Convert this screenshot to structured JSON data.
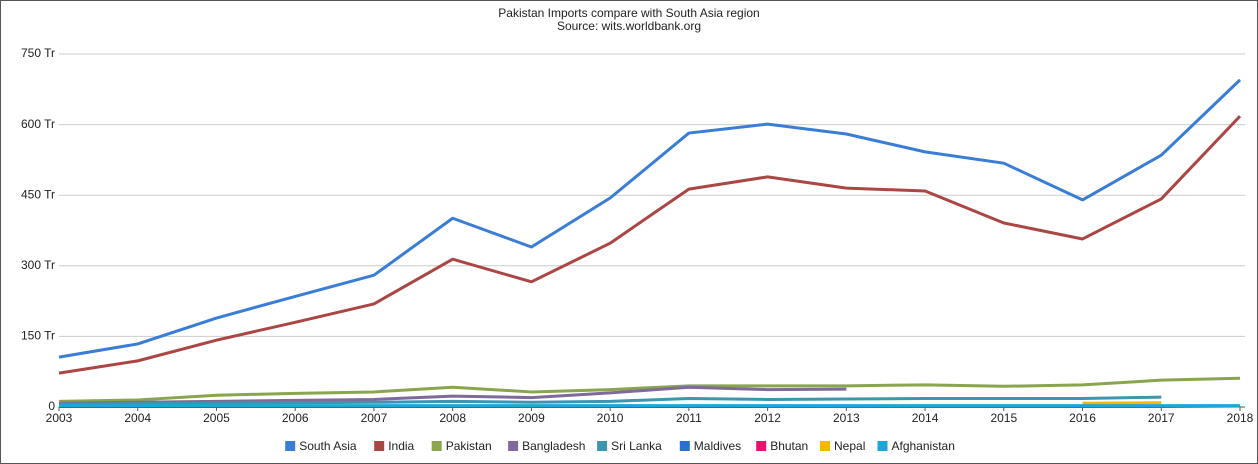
{
  "chart_data": {
    "type": "line",
    "title": "Pakistan Imports compare with South Asia region",
    "subtitle": "Source: wits.worldbank.org",
    "x": [
      2003,
      2004,
      2005,
      2006,
      2007,
      2008,
      2009,
      2010,
      2011,
      2012,
      2013,
      2014,
      2015,
      2016,
      2017,
      2018
    ],
    "xlim": [
      2003,
      2018
    ],
    "xticks": [
      2003,
      2004,
      2005,
      2006,
      2007,
      2008,
      2009,
      2010,
      2011,
      2012,
      2013,
      2014,
      2015,
      2016,
      2017,
      2018
    ],
    "ylim": [
      0,
      750
    ],
    "yticks": [
      0,
      {
        "value": 150,
        "label": "150 Tr"
      },
      {
        "value": 300,
        "label": "300 Tr"
      },
      {
        "value": 450,
        "label": "450 Tr"
      },
      {
        "value": 600,
        "label": "600 Tr"
      },
      {
        "value": 750,
        "label": "750 Tr"
      }
    ],
    "grid": true,
    "legend": "bottom",
    "series": [
      {
        "name": "South Asia",
        "color": "#3a7dd6",
        "values": [
          106,
          134,
          189,
          235,
          280,
          401,
          340,
          444,
          582,
          601,
          580,
          542,
          518,
          440,
          535,
          695
        ]
      },
      {
        "name": "India",
        "color": "#aa4643",
        "values": [
          72,
          98,
          142,
          180,
          219,
          314,
          266,
          348,
          463,
          489,
          465,
          459,
          391,
          357,
          442,
          618
        ]
      },
      {
        "name": "Pakistan",
        "color": "#89a54e",
        "values": [
          12,
          15,
          25,
          29,
          32,
          42,
          32,
          37,
          45,
          45,
          45,
          47,
          44,
          47,
          57,
          61
        ]
      },
      {
        "name": "Bangladesh",
        "color": "#80699b",
        "values": [
          8,
          10,
          12,
          14,
          16,
          23,
          20,
          30,
          42,
          37,
          38,
          null,
          null,
          null,
          null,
          null
        ]
      },
      {
        "name": "Sri Lanka",
        "color": "#3d96ae",
        "values": [
          6,
          7,
          8,
          9,
          10,
          12,
          10,
          12,
          18,
          16,
          17,
          18,
          18,
          18,
          21,
          null
        ]
      },
      {
        "name": "Maldives",
        "color": "#2b6fcf",
        "values": [
          1,
          1,
          1,
          1,
          1,
          1,
          1,
          1,
          1,
          1,
          1,
          1,
          1,
          1,
          1,
          2
        ]
      },
      {
        "name": "Bhutan",
        "color": "#e6136e",
        "values": [
          1,
          1,
          1,
          1,
          1,
          1,
          1,
          1,
          1,
          1,
          null,
          null,
          null,
          null,
          null,
          null
        ]
      },
      {
        "name": "Nepal",
        "color": "#f5b800",
        "values": [
          null,
          null,
          null,
          null,
          null,
          null,
          null,
          null,
          null,
          null,
          null,
          null,
          null,
          8,
          9,
          null
        ]
      },
      {
        "name": "Afghanistan",
        "color": "#1aa8d8",
        "values": [
          3,
          3,
          3,
          3,
          3,
          3,
          3,
          3,
          3,
          3,
          3,
          3,
          3,
          3,
          3,
          3
        ]
      }
    ]
  }
}
